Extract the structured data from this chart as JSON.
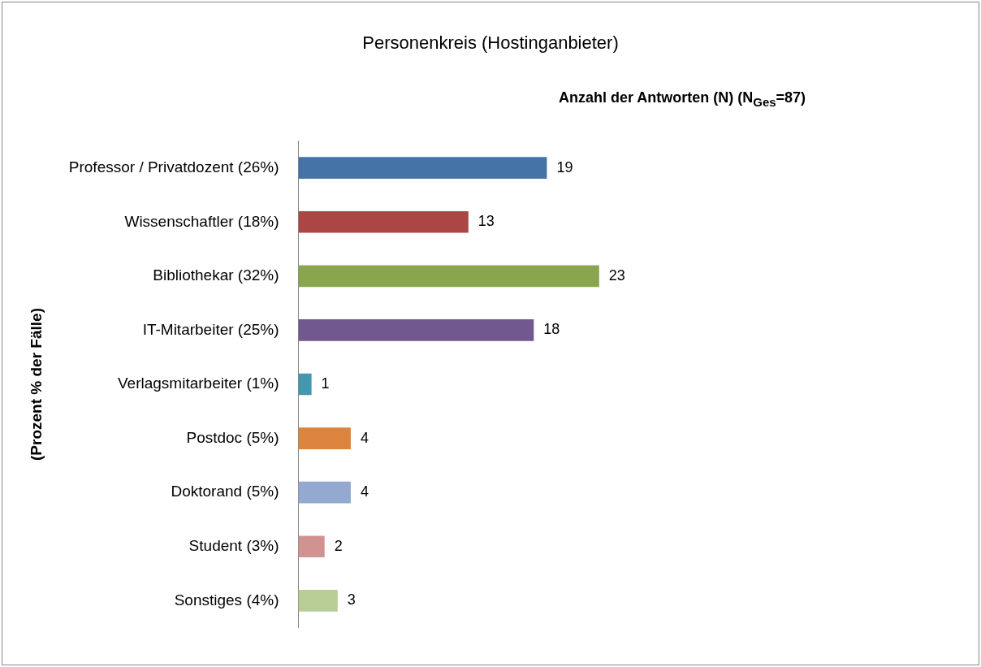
{
  "chart_data": {
    "type": "bar",
    "orientation": "horizontal",
    "title": "Personenkreis (Hostinganbieter)",
    "subtitle": "Anzahl der Antworten (N) (N$_{Ges}$=87)",
    "ylabel": "(Prozent % der Fälle)",
    "categories": [
      "Professor / Privatdozent (26%)",
      "Wissenschaftler (18%)",
      "Bibliothekar (32%)",
      "IT-Mitarbeiter (25%)",
      "Verlagsmitarbeiter (1%)",
      "Postdoc (5%)",
      "Doktorand (5%)",
      "Student (3%)",
      "Sonstiges (4%)"
    ],
    "values": [
      19,
      13,
      23,
      18,
      1,
      4,
      4,
      2,
      3
    ],
    "colors": [
      "#4572a7",
      "#aa4643",
      "#89a54e",
      "#71588f",
      "#4198af",
      "#db843d",
      "#93a9cf",
      "#d19392",
      "#b9cd96"
    ],
    "data_labels": true,
    "grid": false,
    "legend": false,
    "tick_labels": "y"
  }
}
